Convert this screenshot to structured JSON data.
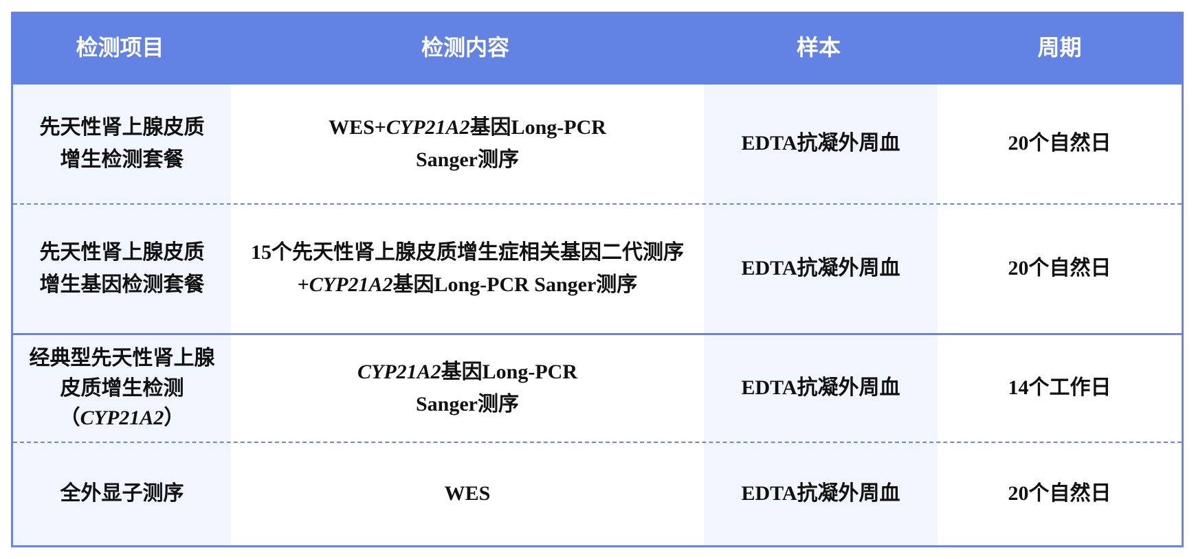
{
  "header": {
    "columns": [
      "检测项目",
      "检测内容",
      "样本",
      "周期"
    ]
  },
  "rows": [
    {
      "item": "先天性肾上腺皮质增生检测套餐",
      "content_pre": "WES+",
      "gene": "CYP21A2",
      "content_post": "基因Long-PCR Sanger测序",
      "sample": "EDTA抗凝外周血",
      "period": "20个自然日"
    },
    {
      "item": "先天性肾上腺皮质增生基因检测套餐",
      "content_pre": "15个先天性肾上腺皮质增生症相关基因二代测序+",
      "gene": "CYP21A2",
      "content_post": "基因Long-PCR Sanger测序",
      "sample": "EDTA抗凝外周血",
      "period": "20个自然日"
    },
    {
      "item": "经典型先天性肾上腺皮质增生检测",
      "item_gene": "CYP21A2",
      "content_pre": "",
      "gene": "CYP21A2",
      "content_post": "基因Long-PCR Sanger测序",
      "sample": "EDTA抗凝外周血",
      "period": "14个工作日"
    },
    {
      "item": "全外显子测序",
      "content_pre": "WES",
      "sample": "EDTA抗凝外周血",
      "period": "20个自然日"
    }
  ],
  "colors": {
    "header_bg": "#6383e4",
    "alt_col_bg": "#f1f5fd",
    "border": "#6a86dc"
  }
}
